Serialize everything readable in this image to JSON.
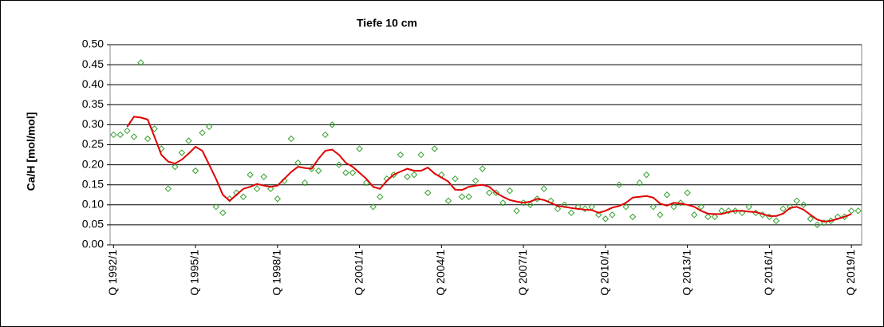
{
  "chart_data": {
    "type": "line",
    "title": "Tiefe  10 cm",
    "y_label": "Ca/H [mol/mol]",
    "categories": [
      "Q 1992/1",
      null,
      null,
      null,
      null,
      null,
      null,
      null,
      null,
      null,
      null,
      null,
      "Q 1995/1",
      null,
      null,
      null,
      null,
      null,
      null,
      null,
      null,
      null,
      null,
      null,
      "Q 1998/1",
      null,
      null,
      null,
      null,
      null,
      null,
      null,
      null,
      null,
      null,
      null,
      "Q 2001/1",
      null,
      null,
      null,
      null,
      null,
      null,
      null,
      null,
      null,
      null,
      null,
      "Q 2004/1",
      null,
      null,
      null,
      null,
      null,
      null,
      null,
      null,
      null,
      null,
      null,
      "Q 2007/1",
      null,
      null,
      null,
      null,
      null,
      null,
      null,
      null,
      null,
      null,
      null,
      "Q 2010/1",
      null,
      null,
      null,
      null,
      null,
      null,
      null,
      null,
      null,
      null,
      null,
      "Q 2013/1",
      null,
      null,
      null,
      null,
      null,
      null,
      null,
      null,
      null,
      null,
      null,
      "Q 2016/1",
      null,
      null,
      null,
      null,
      null,
      null,
      null,
      null,
      null,
      null,
      null,
      "Q 2019/1",
      null
    ],
    "series": [
      {
        "style": "markers",
        "color": "#33a02c",
        "values": [
          0.275,
          0.275,
          0.285,
          0.27,
          0.455,
          0.265,
          0.29,
          0.24,
          0.14,
          0.195,
          0.23,
          0.26,
          0.185,
          0.28,
          0.295,
          0.095,
          0.08,
          0.115,
          0.13,
          0.12,
          0.175,
          0.14,
          0.17,
          0.14,
          0.115,
          0.16,
          0.265,
          0.205,
          0.155,
          0.19,
          0.185,
          0.275,
          0.3,
          0.2,
          0.18,
          0.18,
          0.24,
          0.155,
          0.095,
          0.12,
          0.165,
          0.175,
          0.225,
          0.17,
          0.175,
          0.225,
          0.13,
          0.24,
          0.175,
          0.11,
          0.165,
          0.12,
          0.12,
          0.16,
          0.19,
          0.13,
          0.13,
          0.105,
          0.135,
          0.085,
          0.105,
          0.1,
          0.115,
          0.14,
          0.11,
          0.09,
          0.1,
          0.08,
          0.095,
          0.09,
          0.095,
          0.075,
          0.065,
          0.075,
          0.15,
          0.095,
          0.07,
          0.155,
          0.175,
          0.095,
          0.075,
          0.125,
          0.095,
          0.105,
          0.13,
          0.075,
          0.095,
          0.07,
          0.07,
          0.085,
          0.085,
          0.085,
          0.08,
          0.095,
          0.08,
          0.075,
          0.07,
          0.06,
          0.09,
          0.095,
          0.11,
          0.1,
          0.065,
          0.05,
          0.055,
          0.06,
          0.07,
          0.07,
          0.085,
          0.085
        ]
      },
      {
        "style": "line",
        "color": "#e00000",
        "values": [
          null,
          null,
          0.295,
          0.32,
          0.318,
          0.313,
          0.27,
          0.225,
          0.208,
          0.203,
          0.213,
          0.228,
          0.245,
          0.235,
          0.2,
          0.165,
          0.125,
          0.11,
          0.125,
          0.14,
          0.145,
          0.152,
          0.148,
          0.145,
          0.148,
          0.165,
          0.182,
          0.195,
          0.192,
          0.19,
          0.215,
          0.235,
          0.238,
          0.225,
          0.205,
          0.195,
          0.18,
          0.165,
          0.145,
          0.14,
          0.16,
          0.175,
          0.183,
          0.19,
          0.185,
          0.185,
          0.193,
          0.178,
          0.168,
          0.158,
          0.138,
          0.137,
          0.145,
          0.148,
          0.15,
          0.145,
          0.13,
          0.12,
          0.112,
          0.108,
          0.105,
          0.108,
          0.115,
          0.112,
          0.105,
          0.097,
          0.095,
          0.092,
          0.09,
          0.088,
          0.087,
          0.08,
          0.085,
          0.093,
          0.097,
          0.105,
          0.118,
          0.12,
          0.122,
          0.118,
          0.103,
          0.098,
          0.105,
          0.103,
          0.1,
          0.095,
          0.085,
          0.078,
          0.077,
          0.077,
          0.082,
          0.085,
          0.085,
          0.083,
          0.082,
          0.077,
          0.072,
          0.072,
          0.078,
          0.092,
          0.095,
          0.088,
          0.075,
          0.063,
          0.058,
          0.06,
          0.065,
          0.07,
          0.077,
          null
        ]
      }
    ],
    "ylim": [
      0,
      0.5
    ],
    "yticks": [
      {
        "value": 0,
        "label": "0.00"
      },
      {
        "value": 0.05,
        "label": "0.05"
      },
      {
        "value": 0.1,
        "label": "0.10"
      },
      {
        "value": 0.15,
        "label": "0.15"
      },
      {
        "value": 0.2,
        "label": "0.20"
      },
      {
        "value": 0.25,
        "label": "0.25"
      },
      {
        "value": 0.3,
        "label": "0.30"
      },
      {
        "value": 0.35,
        "label": "0.35"
      },
      {
        "value": 0.4,
        "label": "0.40"
      },
      {
        "value": 0.45,
        "label": "0.45"
      },
      {
        "value": 0.5,
        "label": "0.50"
      }
    ],
    "grid": true
  }
}
